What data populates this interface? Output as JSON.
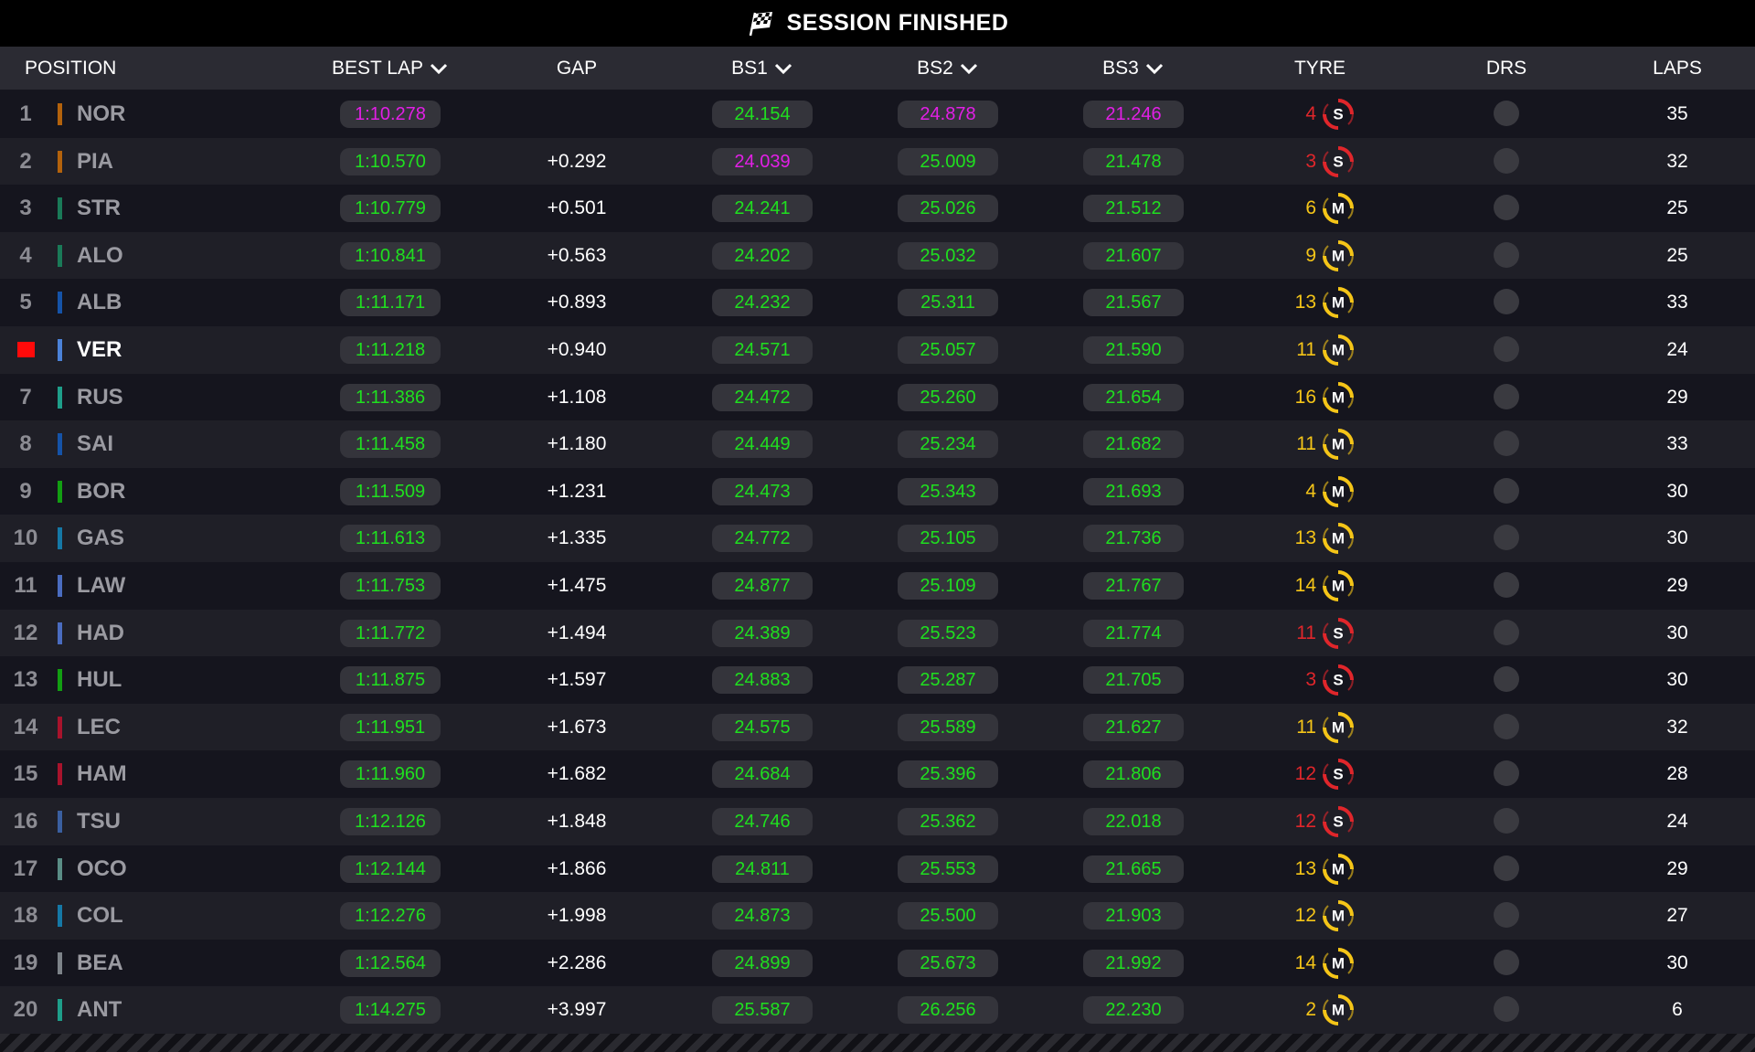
{
  "header": {
    "title": "SESSION FINISHED"
  },
  "columns": [
    {
      "key": "position",
      "label": "POSITION",
      "sortable": false
    },
    {
      "key": "best_lap",
      "label": "BEST LAP",
      "sortable": true
    },
    {
      "key": "gap",
      "label": "GAP",
      "sortable": false
    },
    {
      "key": "bs1",
      "label": "BS1",
      "sortable": true
    },
    {
      "key": "bs2",
      "label": "BS2",
      "sortable": true
    },
    {
      "key": "bs3",
      "label": "BS3",
      "sortable": true
    },
    {
      "key": "tyre",
      "label": "TYRE",
      "sortable": false
    },
    {
      "key": "drs",
      "label": "DRS",
      "sortable": false
    },
    {
      "key": "laps",
      "label": "LAPS",
      "sortable": false
    }
  ],
  "tyre_colors": {
    "S": "#e0262b",
    "M": "#f5c518"
  },
  "fastest_color": "#e21fe6",
  "normal_color": "#1fe01f",
  "rows": [
    {
      "position": 1,
      "driver": "NOR",
      "team_color": "#b3620c",
      "best_lap": "1:10.278",
      "gap": null,
      "bs1": "24.154",
      "bs2": "24.878",
      "bs3": "21.246",
      "tyre_laps": 4,
      "compound": "S",
      "laps": 35,
      "fastest": [
        "best_lap",
        "bs2",
        "bs3"
      ]
    },
    {
      "position": 2,
      "driver": "PIA",
      "team_color": "#b3620c",
      "best_lap": "1:10.570",
      "gap": "+0.292",
      "bs1": "24.039",
      "bs2": "25.009",
      "bs3": "21.478",
      "tyre_laps": 3,
      "compound": "S",
      "laps": 32,
      "fastest": [
        "bs1"
      ]
    },
    {
      "position": 3,
      "driver": "STR",
      "team_color": "#1a7a58",
      "best_lap": "1:10.779",
      "gap": "+0.501",
      "bs1": "24.241",
      "bs2": "25.026",
      "bs3": "21.512",
      "tyre_laps": 6,
      "compound": "M",
      "laps": 25,
      "fastest": []
    },
    {
      "position": 4,
      "driver": "ALO",
      "team_color": "#1a7a58",
      "best_lap": "1:10.841",
      "gap": "+0.563",
      "bs1": "24.202",
      "bs2": "25.032",
      "bs3": "21.607",
      "tyre_laps": 9,
      "compound": "M",
      "laps": 25,
      "fastest": []
    },
    {
      "position": 5,
      "driver": "ALB",
      "team_color": "#1553a8",
      "best_lap": "1:11.171",
      "gap": "+0.893",
      "bs1": "24.232",
      "bs2": "25.311",
      "bs3": "21.567",
      "tyre_laps": 13,
      "compound": "M",
      "laps": 33,
      "fastest": []
    },
    {
      "position": null,
      "marker_color": "#ff0a0a",
      "driver": "VER",
      "team_color": "#4b82d8",
      "best_lap": "1:11.218",
      "gap": "+0.940",
      "bs1": "24.571",
      "bs2": "25.057",
      "bs3": "21.590",
      "tyre_laps": 11,
      "compound": "M",
      "laps": 24,
      "fastest": []
    },
    {
      "position": 7,
      "driver": "RUS",
      "team_color": "#1e9e8a",
      "best_lap": "1:11.386",
      "gap": "+1.108",
      "bs1": "24.472",
      "bs2": "25.260",
      "bs3": "21.654",
      "tyre_laps": 16,
      "compound": "M",
      "laps": 29,
      "fastest": []
    },
    {
      "position": 8,
      "driver": "SAI",
      "team_color": "#1553a8",
      "best_lap": "1:11.458",
      "gap": "+1.180",
      "bs1": "24.449",
      "bs2": "25.234",
      "bs3": "21.682",
      "tyre_laps": 11,
      "compound": "M",
      "laps": 33,
      "fastest": []
    },
    {
      "position": 9,
      "driver": "BOR",
      "team_color": "#129e12",
      "best_lap": "1:11.509",
      "gap": "+1.231",
      "bs1": "24.473",
      "bs2": "25.343",
      "bs3": "21.693",
      "tyre_laps": 4,
      "compound": "M",
      "laps": 30,
      "fastest": []
    },
    {
      "position": 10,
      "driver": "GAS",
      "team_color": "#1578a6",
      "best_lap": "1:11.613",
      "gap": "+1.335",
      "bs1": "24.772",
      "bs2": "25.105",
      "bs3": "21.736",
      "tyre_laps": 13,
      "compound": "M",
      "laps": 30,
      "fastest": []
    },
    {
      "position": 11,
      "driver": "LAW",
      "team_color": "#4a6cc0",
      "best_lap": "1:11.753",
      "gap": "+1.475",
      "bs1": "24.877",
      "bs2": "25.109",
      "bs3": "21.767",
      "tyre_laps": 14,
      "compound": "M",
      "laps": 29,
      "fastest": []
    },
    {
      "position": 12,
      "driver": "HAD",
      "team_color": "#4a6cc0",
      "best_lap": "1:11.772",
      "gap": "+1.494",
      "bs1": "24.389",
      "bs2": "25.523",
      "bs3": "21.774",
      "tyre_laps": 11,
      "compound": "S",
      "laps": 30,
      "fastest": []
    },
    {
      "position": 13,
      "driver": "HUL",
      "team_color": "#129e12",
      "best_lap": "1:11.875",
      "gap": "+1.597",
      "bs1": "24.883",
      "bs2": "25.287",
      "bs3": "21.705",
      "tyre_laps": 3,
      "compound": "S",
      "laps": 30,
      "fastest": []
    },
    {
      "position": 14,
      "driver": "LEC",
      "team_color": "#a8132c",
      "best_lap": "1:11.951",
      "gap": "+1.673",
      "bs1": "24.575",
      "bs2": "25.589",
      "bs3": "21.627",
      "tyre_laps": 11,
      "compound": "M",
      "laps": 32,
      "fastest": []
    },
    {
      "position": 15,
      "driver": "HAM",
      "team_color": "#a8132c",
      "best_lap": "1:11.960",
      "gap": "+1.682",
      "bs1": "24.684",
      "bs2": "25.396",
      "bs3": "21.806",
      "tyre_laps": 12,
      "compound": "S",
      "laps": 28,
      "fastest": []
    },
    {
      "position": 16,
      "driver": "TSU",
      "team_color": "#3a5fa0",
      "best_lap": "1:12.126",
      "gap": "+1.848",
      "bs1": "24.746",
      "bs2": "25.362",
      "bs3": "22.018",
      "tyre_laps": 12,
      "compound": "S",
      "laps": 24,
      "fastest": []
    },
    {
      "position": 17,
      "driver": "OCO",
      "team_color": "#5a8d86",
      "best_lap": "1:12.144",
      "gap": "+1.866",
      "bs1": "24.811",
      "bs2": "25.553",
      "bs3": "21.665",
      "tyre_laps": 13,
      "compound": "M",
      "laps": 29,
      "fastest": []
    },
    {
      "position": 18,
      "driver": "COL",
      "team_color": "#1578a6",
      "best_lap": "1:12.276",
      "gap": "+1.998",
      "bs1": "24.873",
      "bs2": "25.500",
      "bs3": "21.903",
      "tyre_laps": 12,
      "compound": "M",
      "laps": 27,
      "fastest": []
    },
    {
      "position": 19,
      "driver": "BEA",
      "team_color": "#7d8389",
      "best_lap": "1:12.564",
      "gap": "+2.286",
      "bs1": "24.899",
      "bs2": "25.673",
      "bs3": "21.992",
      "tyre_laps": 14,
      "compound": "M",
      "laps": 30,
      "fastest": []
    },
    {
      "position": 20,
      "driver": "ANT",
      "team_color": "#1e9e8a",
      "best_lap": "1:14.275",
      "gap": "+3.997",
      "bs1": "25.587",
      "bs2": "26.256",
      "bs3": "22.230",
      "tyre_laps": 2,
      "compound": "M",
      "laps": 6,
      "fastest": []
    }
  ]
}
